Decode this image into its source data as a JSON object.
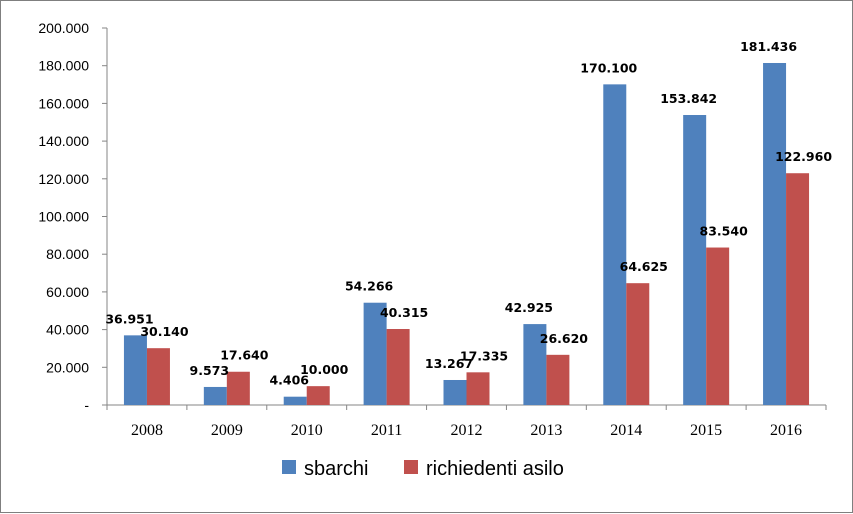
{
  "chart_data": {
    "type": "bar",
    "categories": [
      "2008",
      "2009",
      "2010",
      "2011",
      "2012",
      "2013",
      "2014",
      "2015",
      "2016"
    ],
    "series": [
      {
        "name": "sbarchi",
        "color": "#4f81bd",
        "values": [
          36951,
          9573,
          4406,
          54266,
          13267,
          42925,
          170100,
          153842,
          181436
        ],
        "labels": [
          "36.951",
          "9.573",
          "4.406",
          "54.266",
          "13.267",
          "42.925",
          "170.100",
          "153.842",
          "181.436"
        ]
      },
      {
        "name": "richiedenti asilo",
        "color": "#c0504d",
        "values": [
          30140,
          17640,
          10000,
          40315,
          17335,
          26620,
          64625,
          83540,
          122960
        ],
        "labels": [
          "30.140",
          "17.640",
          "10.000",
          "40.315",
          "17.335",
          "26.620",
          "64.625",
          "83.540",
          "122.960"
        ]
      }
    ],
    "yticks": [
      {
        "value": 0,
        "label": "-"
      },
      {
        "value": 20000,
        "label": "20.000"
      },
      {
        "value": 40000,
        "label": "40.000"
      },
      {
        "value": 60000,
        "label": "60.000"
      },
      {
        "value": 80000,
        "label": "80.000"
      },
      {
        "value": 100000,
        "label": "100.000"
      },
      {
        "value": 120000,
        "label": "120.000"
      },
      {
        "value": 140000,
        "label": "140.000"
      },
      {
        "value": 160000,
        "label": "160.000"
      },
      {
        "value": 180000,
        "label": "180.000"
      },
      {
        "value": 200000,
        "label": "200.000"
      }
    ],
    "ylim": [
      0,
      200000
    ],
    "grid": false,
    "legend_position": "bottom",
    "title": "",
    "xlabel": "",
    "ylabel": ""
  }
}
